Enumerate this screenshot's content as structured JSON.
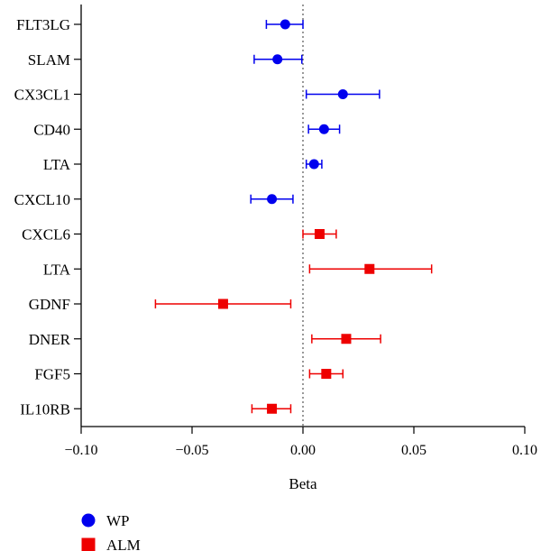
{
  "chart_data": {
    "type": "scatter",
    "subtype": "forest-plot",
    "xlabel": "Beta",
    "xlim": [
      -0.1,
      0.1
    ],
    "x_ticks": [
      "−0.10",
      "−0.05",
      "0.00",
      "0.05",
      "0.10"
    ],
    "x_tick_values": [
      -0.1,
      -0.05,
      0.0,
      0.05,
      0.1
    ],
    "reference_line": 0,
    "legend_position": "bottom-left",
    "series": [
      {
        "name": "WP",
        "color": "#0000ee",
        "marker": "circle",
        "points": [
          {
            "label": "FLT3LG",
            "beta": -0.008,
            "lower": -0.0165,
            "upper": 0.0
          },
          {
            "label": "SLAM",
            "beta": -0.0115,
            "lower": -0.022,
            "upper": -0.0005
          },
          {
            "label": "CX3CL1",
            "beta": 0.018,
            "lower": 0.0015,
            "upper": 0.0345
          },
          {
            "label": "CD40",
            "beta": 0.0095,
            "lower": 0.0025,
            "upper": 0.0165
          },
          {
            "label": "LTA",
            "beta": 0.005,
            "lower": 0.0015,
            "upper": 0.0085
          },
          {
            "label": "CXCL10",
            "beta": -0.014,
            "lower": -0.0235,
            "upper": -0.0045
          }
        ]
      },
      {
        "name": "ALM",
        "color": "#ee0000",
        "marker": "square",
        "points": [
          {
            "label": "CXCL6",
            "beta": 0.0075,
            "lower": 0.0,
            "upper": 0.015
          },
          {
            "label": "LTA",
            "beta": 0.03,
            "lower": 0.003,
            "upper": 0.058
          },
          {
            "label": "GDNF",
            "beta": -0.036,
            "lower": -0.0665,
            "upper": -0.0055
          },
          {
            "label": "DNER",
            "beta": 0.0195,
            "lower": 0.004,
            "upper": 0.035
          },
          {
            "label": "FGF5",
            "beta": 0.0105,
            "lower": 0.003,
            "upper": 0.018
          },
          {
            "label": "IL10RB",
            "beta": -0.014,
            "lower": -0.023,
            "upper": -0.0055
          }
        ]
      }
    ]
  }
}
